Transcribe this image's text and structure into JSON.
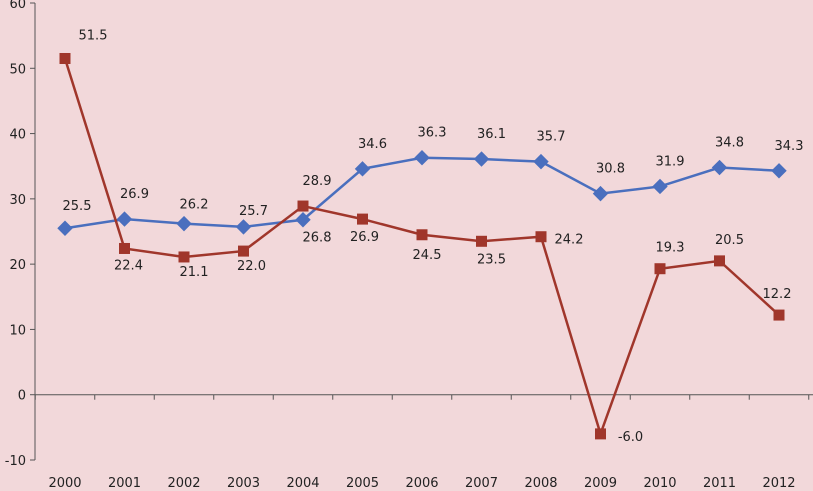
{
  "chart_data": {
    "type": "line",
    "title": "",
    "xlabel": "",
    "ylabel": "",
    "categories": [
      "2000",
      "2001",
      "2002",
      "2003",
      "2004",
      "2005",
      "2006",
      "2007",
      "2008",
      "2009",
      "2010",
      "2011",
      "2012"
    ],
    "ylim": [
      -10,
      60
    ],
    "yticks": [
      -10,
      0,
      10,
      20,
      30,
      40,
      50,
      60
    ],
    "grid": false,
    "legend": "none",
    "series": [
      {
        "color": "#4a6fbe",
        "marker": "diamond",
        "values": [
          25.5,
          26.9,
          26.2,
          25.7,
          26.8,
          34.6,
          36.3,
          36.1,
          35.7,
          30.8,
          31.9,
          34.8,
          34.3
        ],
        "labels": [
          "25.5",
          "26.9",
          "26.2",
          "25.7",
          "26.8",
          "34.6",
          "36.3",
          "36.1",
          "35.7",
          "30.8",
          "31.9",
          "34.8",
          "34.3"
        ]
      },
      {
        "color": "#a0362b",
        "marker": "square",
        "values": [
          51.5,
          22.4,
          21.1,
          22.0,
          28.9,
          26.9,
          24.5,
          23.5,
          24.2,
          -6.0,
          19.3,
          20.5,
          12.2
        ],
        "labels": [
          "51.5",
          "22.4",
          "21.1",
          "22.0",
          "28.9",
          "26.9",
          "24.5",
          "23.5",
          "24.2",
          "-6.0",
          "19.3",
          "20.5",
          "12.2"
        ]
      }
    ]
  }
}
